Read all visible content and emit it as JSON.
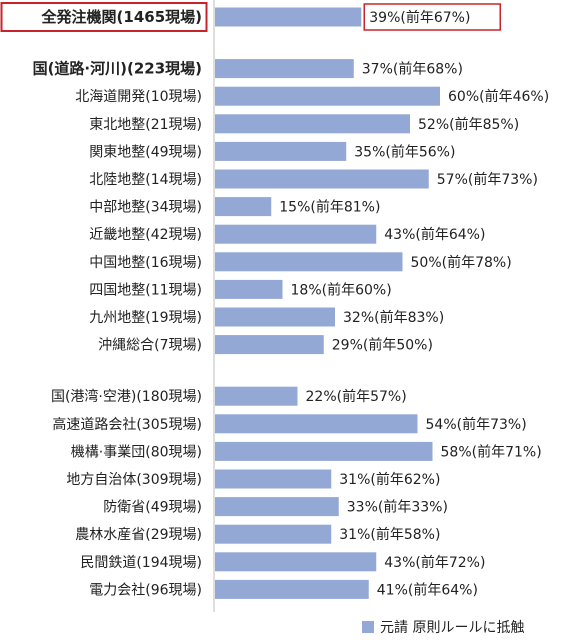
{
  "chart_data": {
    "type": "bar",
    "orientation": "horizontal",
    "bar_color": "#93a8d5",
    "highlight_border_color": "#c8232c",
    "divider_color": "#bdbdbd",
    "value_unit": "%",
    "groups": [
      {
        "rows": [
          {
            "label": "全発注機関(1465現場)",
            "value": 39,
            "prev": 67,
            "bold": true,
            "highlight": true,
            "value_text": "39%(前年67%)"
          }
        ]
      },
      {
        "rows": [
          {
            "label": "国(道路·河川)(223現場)",
            "value": 37,
            "prev": 68,
            "bold": true,
            "value_text": "37%(前年68%)"
          },
          {
            "label": "北海道開発(10現場)",
            "value": 60,
            "prev": 46,
            "value_text": "60%(前年46%)"
          },
          {
            "label": "東北地整(21現場)",
            "value": 52,
            "prev": 85,
            "value_text": "52%(前年85%)"
          },
          {
            "label": "関東地整(49現場)",
            "value": 35,
            "prev": 56,
            "value_text": "35%(前年56%)"
          },
          {
            "label": "北陸地整(14現場)",
            "value": 57,
            "prev": 73,
            "value_text": "57%(前年73%)"
          },
          {
            "label": "中部地整(34現場)",
            "value": 15,
            "prev": 81,
            "value_text": "15%(前年81%)"
          },
          {
            "label": "近畿地整(42現場)",
            "value": 43,
            "prev": 64,
            "value_text": "43%(前年64%)"
          },
          {
            "label": "中国地整(16現場)",
            "value": 50,
            "prev": 78,
            "value_text": "50%(前年78%)"
          },
          {
            "label": "四国地整(11現場)",
            "value": 18,
            "prev": 60,
            "value_text": "18%(前年60%)"
          },
          {
            "label": "九州地整(19現場)",
            "value": 32,
            "prev": 83,
            "value_text": "32%(前年83%)"
          },
          {
            "label": "沖縄総合(7現場)",
            "value": 29,
            "prev": 50,
            "value_text": "29%(前年50%)"
          }
        ]
      },
      {
        "rows": [
          {
            "label": "国(港湾·空港)(180現場)",
            "value": 22,
            "prev": 57,
            "value_text": "22%(前年57%)"
          },
          {
            "label": "高速道路会社(305現場)",
            "value": 54,
            "prev": 73,
            "value_text": "54%(前年73%)"
          },
          {
            "label": "機構·事業団(80現場)",
            "value": 58,
            "prev": 71,
            "value_text": "58%(前年71%)"
          },
          {
            "label": "地方自治体(309現場)",
            "value": 31,
            "prev": 62,
            "value_text": "31%(前年62%)"
          },
          {
            "label": "防衛省(49現場)",
            "value": 33,
            "prev": 33,
            "value_text": "33%(前年33%)"
          },
          {
            "label": "農林水産省(29現場)",
            "value": 31,
            "prev": 58,
            "value_text": "31%(前年58%)"
          },
          {
            "label": "民間鉄道(194現場)",
            "value": 43,
            "prev": 72,
            "value_text": "43%(前年72%)"
          },
          {
            "label": "電力会社(96現場)",
            "value": 41,
            "prev": 64,
            "value_text": "41%(前年64%)"
          }
        ]
      }
    ],
    "legend": {
      "label": "元請 原則ルールに抵触",
      "position": "bottom-right"
    }
  }
}
